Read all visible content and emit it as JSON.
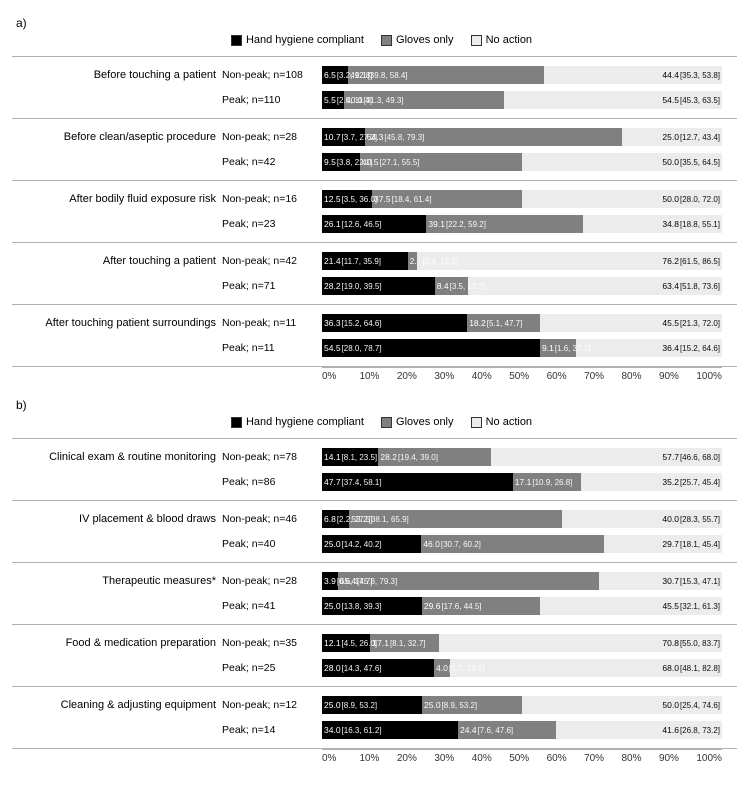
{
  "colors": {
    "hand": "#000000",
    "gloves": "#808080",
    "none": "#ececec",
    "border": "#b0b0b0",
    "bg": "#ffffff"
  },
  "legend": {
    "hand": "Hand hygiene compliant",
    "gloves": "Gloves only",
    "none": "No action"
  },
  "axis_ticks": [
    "0%",
    "10%",
    "20%",
    "30%",
    "40%",
    "50%",
    "60%",
    "70%",
    "80%",
    "90%",
    "100%"
  ],
  "panels": [
    {
      "label": "a)",
      "groups": [
        {
          "title": "Before touching a patient",
          "rows": [
            {
              "sub": "Non-peak; n=108",
              "vals": [
                6.5,
                49.1,
                44.4
              ],
              "ci": [
                "[3.2, 12.8]",
                "[39.8, 58.4]",
                "[35.3, 53.8]"
              ]
            },
            {
              "sub": "Peak; n=110",
              "vals": [
                5.5,
                40.0,
                54.5
              ],
              "ci": [
                "[2.5, 11.4]",
                "[31.3, 49.3]",
                "[45.3, 63.5]"
              ]
            }
          ]
        },
        {
          "title": "Before clean/aseptic procedure",
          "rows": [
            {
              "sub": "Non-peak; n=28",
              "vals": [
                10.7,
                64.3,
                25.0
              ],
              "ci": [
                "[3.7, 27.2]",
                "[45.8, 79.3]",
                "[12.7, 43.4]"
              ]
            },
            {
              "sub": "Peak; n=42",
              "vals": [
                9.5,
                40.5,
                50.0
              ],
              "ci": [
                "[3.8, 22.1]",
                "[27.1, 55.5]",
                "[35.5, 64.5]"
              ]
            }
          ]
        },
        {
          "title": "After bodily fluid exposure risk",
          "rows": [
            {
              "sub": "Non-peak; n=16",
              "vals": [
                12.5,
                37.5,
                50.0
              ],
              "ci": [
                "[3.5, 36.0]",
                "[18.4, 61.4]",
                "[28.0, 72.0]"
              ]
            },
            {
              "sub": "Peak; n=23",
              "vals": [
                26.1,
                39.1,
                34.8
              ],
              "ci": [
                "[12.6, 46.5]",
                "[22.2, 59.2]",
                "[18.8, 55.1]"
              ]
            }
          ]
        },
        {
          "title": "After touching a patient",
          "rows": [
            {
              "sub": "Non-peak; n=42",
              "vals": [
                21.4,
                2.4,
                76.2
              ],
              "ci": [
                "[11.7, 35.9]",
                "[0.4, 12.3]",
                "[61.5, 86.5]"
              ]
            },
            {
              "sub": "Peak; n=71",
              "vals": [
                28.2,
                8.4,
                63.4
              ],
              "ci": [
                "[19.0, 39.5]",
                "[3.5, 17.2]",
                "[51.8, 73.6]"
              ]
            }
          ]
        },
        {
          "title": "After touching patient surroundings",
          "rows": [
            {
              "sub": "Non-peak; n=11",
              "vals": [
                36.3,
                18.2,
                45.5
              ],
              "ci": [
                "[15.2, 64.6]",
                "[5.1, 47.7]",
                "[21.3, 72.0]"
              ]
            },
            {
              "sub": "Peak; n=11",
              "vals": [
                54.5,
                9.1,
                36.4
              ],
              "ci": [
                "[28.0, 78.7]",
                "[1.6, 37.7]",
                "[15.2, 64.6]"
              ]
            }
          ]
        }
      ]
    },
    {
      "label": "b)",
      "groups": [
        {
          "title": "Clinical exam & routine monitoring",
          "rows": [
            {
              "sub": "Non-peak; n=78",
              "vals": [
                14.1,
                28.2,
                57.7
              ],
              "ci": [
                "[8.1, 23.5]",
                "[19.4, 39.0]",
                "[46.6, 68.0]"
              ]
            },
            {
              "sub": "Peak; n=86",
              "vals": [
                47.7,
                17.1,
                35.2
              ],
              "ci": [
                "[37.4, 58.1]",
                "[10.9, 26.8]",
                "[25.7, 45.4]"
              ]
            }
          ]
        },
        {
          "title": "IV placement & blood draws",
          "rows": [
            {
              "sub": "Non-peak; n=46",
              "vals": [
                6.8,
                53.2,
                40.0
              ],
              "ci": [
                "[2.2, 17.5]",
                "[38.1, 65.9]",
                "[28.3, 55.7]"
              ]
            },
            {
              "sub": "Peak; n=40",
              "vals": [
                25.0,
                46.0,
                29.7
              ],
              "ci": [
                "[14.2, 40.2]",
                "[30.7, 60.2]",
                "[18.1, 45.4]"
              ]
            }
          ]
        },
        {
          "title": "Therapeutic measures*",
          "rows": [
            {
              "sub": "Non-peak; n=28",
              "vals": [
                3.9,
                65.4,
                30.7
              ],
              "ci": [
                "[0.6, 17.7]",
                "[45.8, 79.3]",
                "[15.3, 47.1]"
              ]
            },
            {
              "sub": "Peak; n=41",
              "vals": [
                25.0,
                29.6,
                45.5
              ],
              "ci": [
                "[13.8, 39.3]",
                "[17.6, 44.5]",
                "[32.1, 61.3]"
              ]
            }
          ]
        },
        {
          "title": "Food & medication preparation",
          "rows": [
            {
              "sub": "Non-peak; n=35",
              "vals": [
                12.1,
                17.1,
                70.8
              ],
              "ci": [
                "[4.5, 26.0]",
                "[8.1, 32.7]",
                "[55.0, 83.7]"
              ]
            },
            {
              "sub": "Peak; n=25",
              "vals": [
                28.0,
                4.0,
                68.0
              ],
              "ci": [
                "[14.3, 47.6]",
                "[0.7, 19.5]",
                "[48.1, 82.8]"
              ]
            }
          ]
        },
        {
          "title": "Cleaning & adjusting equipment",
          "rows": [
            {
              "sub": "Non-peak; n=12",
              "vals": [
                25.0,
                25.0,
                50.0
              ],
              "ci": [
                "[8.9, 53.2]",
                "[8.9, 53.2]",
                "[25.4, 74.6]"
              ]
            },
            {
              "sub": "Peak; n=14",
              "vals": [
                34.0,
                24.4,
                41.6
              ],
              "ci": [
                "[16.3, 61.2]",
                "[7.6, 47.6]",
                "[26.8, 73.2]"
              ]
            }
          ]
        }
      ]
    }
  ]
}
